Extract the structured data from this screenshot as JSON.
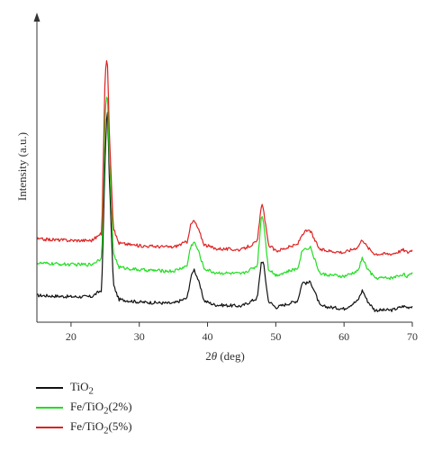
{
  "chart_data": {
    "type": "line",
    "xlabel_prefix": "2",
    "xlabel_theta": "θ",
    "xlabel_suffix": " (deg)",
    "ylabel": "Intensity (a.u.)",
    "xlim": [
      15,
      70
    ],
    "x_ticks": [
      20,
      30,
      40,
      50,
      60,
      70
    ],
    "y_ticks_shown": false,
    "grid": false,
    "legend_position": "bottom-left",
    "series": [
      {
        "name_main": "TiO",
        "name_sub": "2",
        "name_rest": "",
        "color": "#111111",
        "baseline": 0.1,
        "x": [
          15,
          20,
          23,
          24.5,
          25.0,
          25.3,
          25.6,
          26.2,
          27,
          30,
          35,
          37,
          37.5,
          38,
          38.6,
          39.5,
          41,
          45,
          47.3,
          47.9,
          48.2,
          48.9,
          50,
          53.2,
          53.9,
          54.5,
          55.1,
          55.6,
          56.5,
          60,
          62,
          62.7,
          63.4,
          64.5,
          67,
          68.2,
          68.7,
          69.3,
          70
        ],
        "y": [
          0.1,
          0.095,
          0.095,
          0.12,
          0.62,
          0.82,
          0.55,
          0.14,
          0.085,
          0.075,
          0.07,
          0.09,
          0.16,
          0.2,
          0.16,
          0.08,
          0.065,
          0.06,
          0.09,
          0.23,
          0.22,
          0.08,
          0.055,
          0.08,
          0.15,
          0.145,
          0.15,
          0.12,
          0.06,
          0.05,
          0.08,
          0.12,
          0.08,
          0.045,
          0.045,
          0.055,
          0.06,
          0.055,
          0.06
        ]
      },
      {
        "name_main": "Fe/TiO",
        "name_sub": "2",
        "name_rest": "(2%)",
        "color": "#22dd22",
        "baseline": 0.22,
        "x": [
          15,
          20,
          23,
          24.5,
          25.0,
          25.3,
          25.6,
          26.2,
          27,
          30,
          35,
          37,
          37.5,
          38,
          38.6,
          39.5,
          41,
          45,
          47.3,
          47.9,
          48.2,
          48.9,
          50,
          53.2,
          53.9,
          54.5,
          55.1,
          55.6,
          56.5,
          60,
          62,
          62.7,
          63.4,
          64.5,
          67,
          68.2,
          68.7,
          69.3,
          70
        ],
        "y": [
          0.22,
          0.215,
          0.215,
          0.24,
          0.78,
          0.87,
          0.62,
          0.26,
          0.205,
          0.195,
          0.19,
          0.21,
          0.28,
          0.3,
          0.27,
          0.2,
          0.185,
          0.18,
          0.21,
          0.4,
          0.38,
          0.2,
          0.175,
          0.2,
          0.27,
          0.275,
          0.28,
          0.24,
          0.18,
          0.17,
          0.19,
          0.24,
          0.2,
          0.165,
          0.165,
          0.175,
          0.18,
          0.17,
          0.18
        ]
      },
      {
        "name_main": "Fe/TiO",
        "name_sub": "2",
        "name_rest": "(5%)",
        "color": "#dd2222",
        "baseline": 0.31,
        "x": [
          15,
          20,
          23,
          24.5,
          25.0,
          25.3,
          25.6,
          26.2,
          27,
          30,
          35,
          37,
          37.5,
          38,
          38.6,
          39.5,
          41,
          45,
          47.3,
          47.9,
          48.2,
          48.9,
          50,
          53.2,
          53.9,
          54.5,
          55.1,
          55.6,
          56.5,
          60,
          62,
          62.7,
          63.4,
          64.5,
          67,
          68.2,
          68.7,
          69.3,
          70
        ],
        "y": [
          0.31,
          0.305,
          0.305,
          0.33,
          0.93,
          1.0,
          0.72,
          0.35,
          0.295,
          0.285,
          0.28,
          0.3,
          0.36,
          0.38,
          0.35,
          0.29,
          0.275,
          0.27,
          0.3,
          0.44,
          0.42,
          0.29,
          0.265,
          0.29,
          0.33,
          0.34,
          0.34,
          0.31,
          0.27,
          0.26,
          0.28,
          0.31,
          0.28,
          0.255,
          0.255,
          0.265,
          0.27,
          0.26,
          0.27
        ]
      }
    ]
  }
}
